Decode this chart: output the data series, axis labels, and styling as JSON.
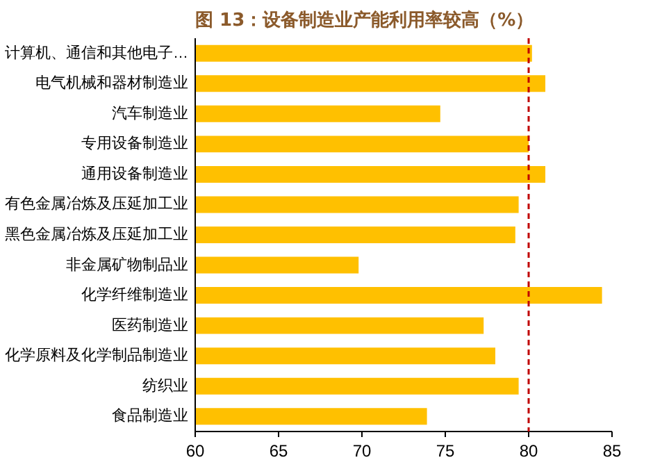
{
  "chart_data": {
    "type": "bar",
    "orientation": "horizontal",
    "title": "图 13：设备制造业产能利用率较高（%）",
    "categories": [
      "计算机、通信和其他电子…",
      "电气机械和器材制造业",
      "汽车制造业",
      "专用设备制造业",
      "通用设备制造业",
      "有色金属冶炼及压延加工业",
      "黑色金属冶炼及压延加工业",
      "非金属矿物制品业",
      "化学纤维制造业",
      "医药制造业",
      "化学原料及化学制品制造业",
      "纺织业",
      "食品制造业"
    ],
    "values": [
      80.2,
      81.0,
      74.7,
      80.0,
      81.0,
      79.4,
      79.2,
      69.8,
      84.4,
      77.3,
      78.0,
      79.4,
      73.9
    ],
    "color": "#ffc000",
    "xlim": [
      60,
      85
    ],
    "xticks": [
      60,
      65,
      70,
      75,
      80,
      85
    ],
    "grid": false,
    "ref_lines": [
      {
        "axis": "x",
        "value": 80,
        "color": "#c00000",
        "line_style": "dashed"
      }
    ]
  }
}
